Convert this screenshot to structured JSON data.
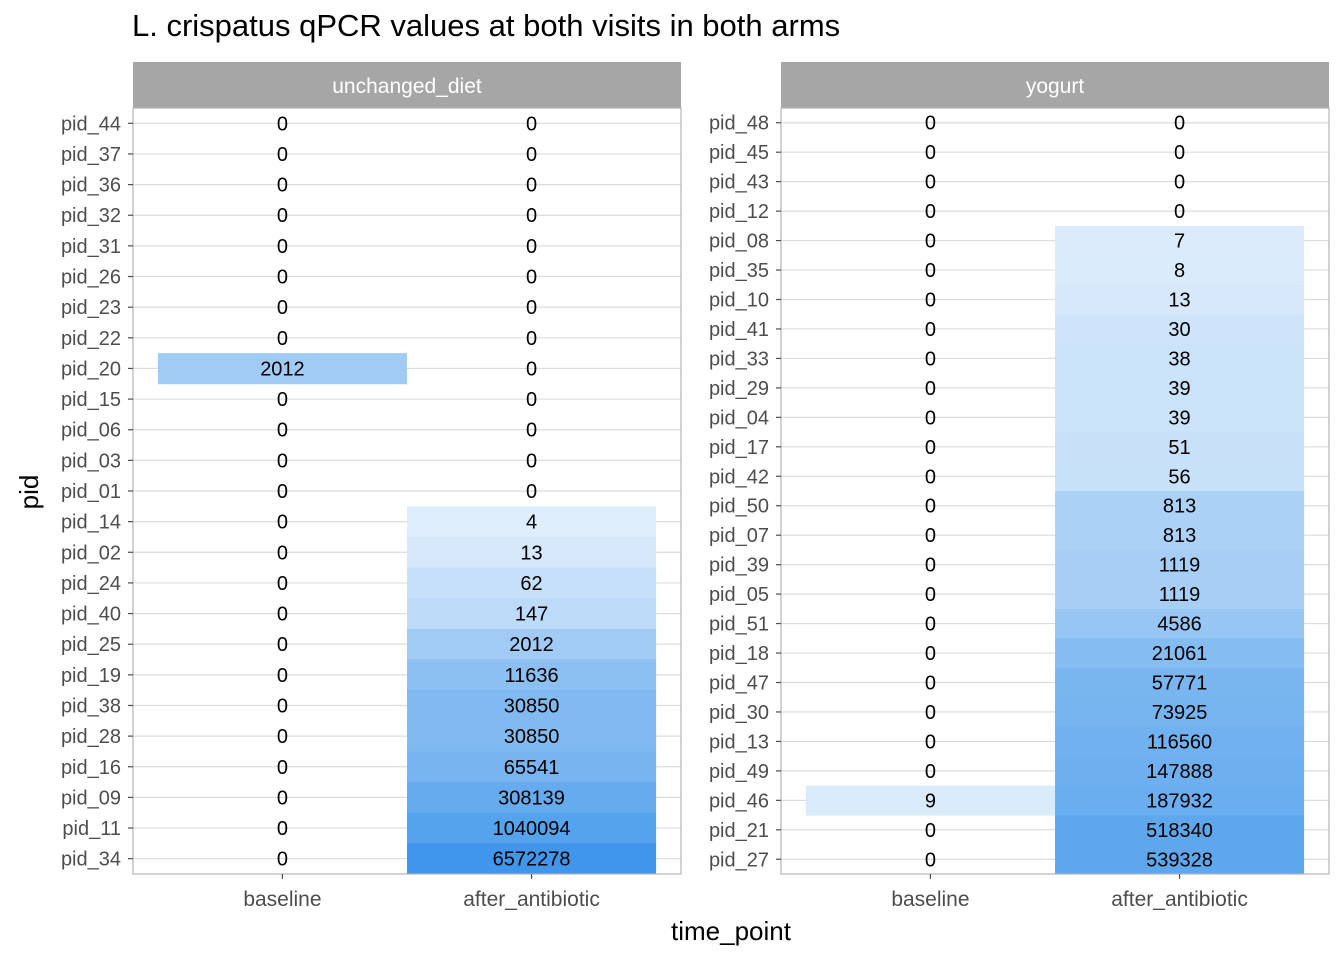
{
  "chart_data": {
    "type": "heatmap",
    "title": "L. crispatus qPCR values at both visits in both arms",
    "xlabel": "time_point",
    "ylabel": "pid",
    "x_categories": [
      "baseline",
      "after_antibiotic"
    ],
    "color_scale": {
      "low": "#ffffff",
      "high": "#3f96ea",
      "zero": "none",
      "transform": "log"
    },
    "panels": [
      {
        "facet": "unchanged_diet",
        "rows": [
          {
            "pid": "pid_44",
            "baseline": 0,
            "after_antibiotic": 0
          },
          {
            "pid": "pid_37",
            "baseline": 0,
            "after_antibiotic": 0
          },
          {
            "pid": "pid_36",
            "baseline": 0,
            "after_antibiotic": 0
          },
          {
            "pid": "pid_32",
            "baseline": 0,
            "after_antibiotic": 0
          },
          {
            "pid": "pid_31",
            "baseline": 0,
            "after_antibiotic": 0
          },
          {
            "pid": "pid_26",
            "baseline": 0,
            "after_antibiotic": 0
          },
          {
            "pid": "pid_23",
            "baseline": 0,
            "after_antibiotic": 0
          },
          {
            "pid": "pid_22",
            "baseline": 0,
            "after_antibiotic": 0
          },
          {
            "pid": "pid_20",
            "baseline": 2012,
            "after_antibiotic": 0
          },
          {
            "pid": "pid_15",
            "baseline": 0,
            "after_antibiotic": 0
          },
          {
            "pid": "pid_06",
            "baseline": 0,
            "after_antibiotic": 0
          },
          {
            "pid": "pid_03",
            "baseline": 0,
            "after_antibiotic": 0
          },
          {
            "pid": "pid_01",
            "baseline": 0,
            "after_antibiotic": 0
          },
          {
            "pid": "pid_14",
            "baseline": 0,
            "after_antibiotic": 4
          },
          {
            "pid": "pid_02",
            "baseline": 0,
            "after_antibiotic": 13
          },
          {
            "pid": "pid_24",
            "baseline": 0,
            "after_antibiotic": 62
          },
          {
            "pid": "pid_40",
            "baseline": 0,
            "after_antibiotic": 147
          },
          {
            "pid": "pid_25",
            "baseline": 0,
            "after_antibiotic": 2012
          },
          {
            "pid": "pid_19",
            "baseline": 0,
            "after_antibiotic": 11636
          },
          {
            "pid": "pid_38",
            "baseline": 0,
            "after_antibiotic": 30850
          },
          {
            "pid": "pid_28",
            "baseline": 0,
            "after_antibiotic": 30850
          },
          {
            "pid": "pid_16",
            "baseline": 0,
            "after_antibiotic": 65541
          },
          {
            "pid": "pid_09",
            "baseline": 0,
            "after_antibiotic": 308139
          },
          {
            "pid": "pid_11",
            "baseline": 0,
            "after_antibiotic": 1040094
          },
          {
            "pid": "pid_34",
            "baseline": 0,
            "after_antibiotic": 6572278
          }
        ]
      },
      {
        "facet": "yogurt",
        "rows": [
          {
            "pid": "pid_48",
            "baseline": 0,
            "after_antibiotic": 0
          },
          {
            "pid": "pid_45",
            "baseline": 0,
            "after_antibiotic": 0
          },
          {
            "pid": "pid_43",
            "baseline": 0,
            "after_antibiotic": 0
          },
          {
            "pid": "pid_12",
            "baseline": 0,
            "after_antibiotic": 0
          },
          {
            "pid": "pid_08",
            "baseline": 0,
            "after_antibiotic": 7
          },
          {
            "pid": "pid_35",
            "baseline": 0,
            "after_antibiotic": 8
          },
          {
            "pid": "pid_10",
            "baseline": 0,
            "after_antibiotic": 13
          },
          {
            "pid": "pid_41",
            "baseline": 0,
            "after_antibiotic": 30
          },
          {
            "pid": "pid_33",
            "baseline": 0,
            "after_antibiotic": 38
          },
          {
            "pid": "pid_29",
            "baseline": 0,
            "after_antibiotic": 39
          },
          {
            "pid": "pid_04",
            "baseline": 0,
            "after_antibiotic": 39
          },
          {
            "pid": "pid_17",
            "baseline": 0,
            "after_antibiotic": 51
          },
          {
            "pid": "pid_42",
            "baseline": 0,
            "after_antibiotic": 56
          },
          {
            "pid": "pid_50",
            "baseline": 0,
            "after_antibiotic": 813
          },
          {
            "pid": "pid_07",
            "baseline": 0,
            "after_antibiotic": 813
          },
          {
            "pid": "pid_39",
            "baseline": 0,
            "after_antibiotic": 1119
          },
          {
            "pid": "pid_05",
            "baseline": 0,
            "after_antibiotic": 1119
          },
          {
            "pid": "pid_51",
            "baseline": 0,
            "after_antibiotic": 4586
          },
          {
            "pid": "pid_18",
            "baseline": 0,
            "after_antibiotic": 21061
          },
          {
            "pid": "pid_47",
            "baseline": 0,
            "after_antibiotic": 57771
          },
          {
            "pid": "pid_30",
            "baseline": 0,
            "after_antibiotic": 73925
          },
          {
            "pid": "pid_13",
            "baseline": 0,
            "after_antibiotic": 116560
          },
          {
            "pid": "pid_49",
            "baseline": 0,
            "after_antibiotic": 147888
          },
          {
            "pid": "pid_46",
            "baseline": 9,
            "after_antibiotic": 187932
          },
          {
            "pid": "pid_21",
            "baseline": 0,
            "after_antibiotic": 518340
          },
          {
            "pid": "pid_27",
            "baseline": 0,
            "after_antibiotic": 539328
          }
        ]
      }
    ]
  }
}
